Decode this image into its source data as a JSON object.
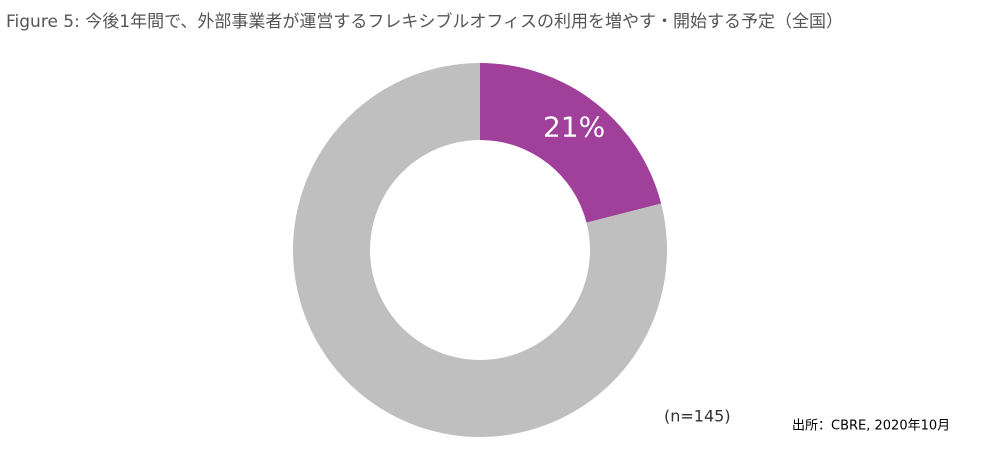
{
  "chart_data": {
    "type": "donut",
    "title": "Figure 5: 今後1年間で、外部事業者が運営するフレキシブルオフィスの利用を増やす・開始する予定（全国）",
    "values": [
      21,
      79
    ],
    "value_labels": [
      "21%",
      null
    ],
    "colors": [
      "#a0409a",
      "#bfbfbf"
    ],
    "annotations": [
      "(n=145)",
      "出所：CBRE, 2020年10月"
    ]
  }
}
